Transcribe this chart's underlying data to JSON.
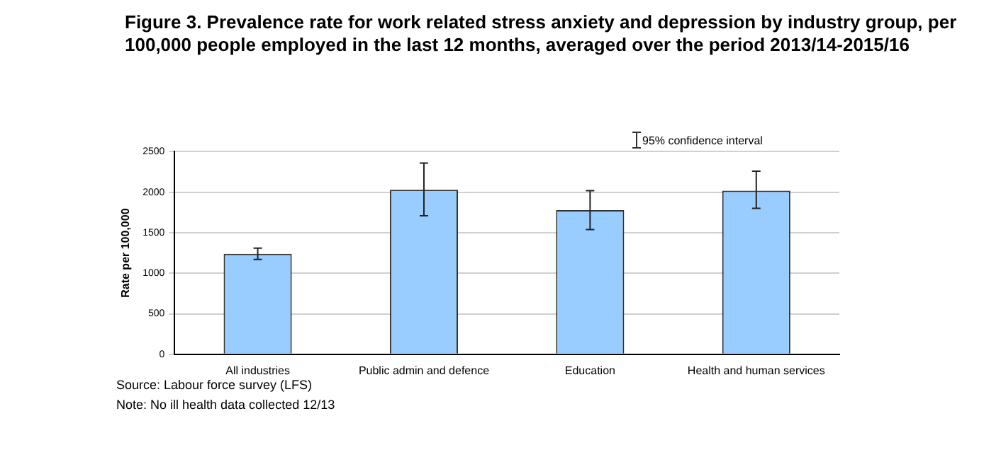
{
  "chart_data": {
    "type": "bar",
    "title": "Figure 3. Prevalence rate for work related stress anxiety and depression by industry group, per 100,000 people employed in the last 12 months, averaged over the period 2013/14-2015/16",
    "ylabel": "Rate per 100,000",
    "categories": [
      "All industries",
      "Public admin and defence",
      "Education",
      "Health and human services"
    ],
    "values": [
      1240,
      2030,
      1780,
      2020
    ],
    "errors": [
      [
        1170,
        1310
      ],
      [
        1710,
        2360
      ],
      [
        1540,
        2020
      ],
      [
        1800,
        2260
      ]
    ],
    "color": "#99ccff",
    "ylim": [
      0,
      2500
    ],
    "yticks": [
      0,
      500,
      1000,
      1500,
      2000,
      2500
    ],
    "grid": "y",
    "legend": false,
    "annotations": [
      "95% confidence interval",
      "Source: Labour force survey (LFS)",
      "Note:  No ill health data collected 12/13"
    ]
  }
}
